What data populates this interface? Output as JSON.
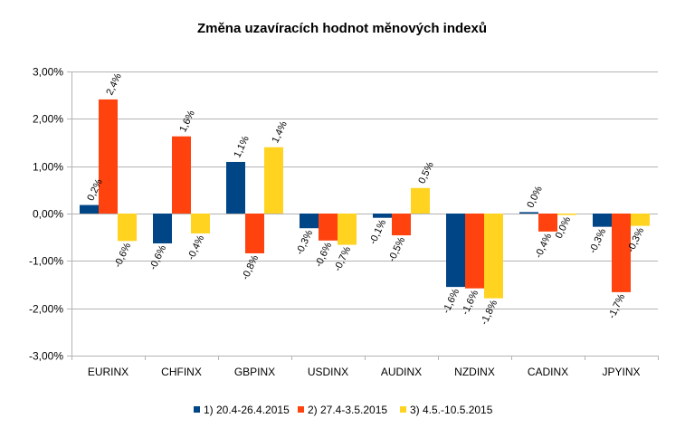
{
  "chart_data": {
    "type": "bar",
    "title": "Změna uzavíracích hodnot měnových indexů",
    "xlabel": "",
    "ylabel": "",
    "ylim": [
      -0.03,
      0.03
    ],
    "yticks": [
      {
        "value": 0.03,
        "label": "3,00%"
      },
      {
        "value": 0.02,
        "label": "2,00%"
      },
      {
        "value": 0.01,
        "label": "1,00%"
      },
      {
        "value": 0.0,
        "label": "0,00%"
      },
      {
        "value": -0.01,
        "label": "-1,00%"
      },
      {
        "value": -0.02,
        "label": "-2,00%"
      },
      {
        "value": -0.03,
        "label": "-3,00%"
      }
    ],
    "grid": true,
    "legend_position": "bottom",
    "categories": [
      "EURINX",
      "CHFINX",
      "GBPINX",
      "USDINX",
      "AUDINX",
      "NZDINX",
      "CADINX",
      "JPYINX"
    ],
    "series": [
      {
        "name": "1) 20.4-26.4.2015",
        "color": "#004586",
        "values": [
          0.0018,
          -0.0063,
          0.0109,
          -0.0031,
          -0.0009,
          -0.0155,
          0.0003,
          -0.0028
        ],
        "labels": [
          "0,2%",
          "-0,6%",
          "1,1%",
          "-0,3%",
          "-0,1%",
          "-1,6%",
          "0,0%",
          "-0,3%"
        ]
      },
      {
        "name": "2) 27.4-3.5.2015",
        "color": "#ff420e",
        "values": [
          0.0241,
          0.0163,
          -0.0084,
          -0.0057,
          -0.0046,
          -0.0158,
          -0.0038,
          -0.0166
        ],
        "labels": [
          "2,4%",
          "1,6%",
          "-0,8%",
          "-0,6%",
          "-0,5%",
          "-1,6%",
          "-0,4%",
          "-1,7%"
        ]
      },
      {
        "name": "3) 4.5.-10.5.2015",
        "color": "#ffd320",
        "values": [
          -0.0058,
          -0.0042,
          0.014,
          -0.0066,
          0.0054,
          -0.0179,
          -0.0003,
          -0.0026
        ],
        "labels": [
          "-0,6%",
          "-0,4%",
          "1,4%",
          "-0,7%",
          "0,5%",
          "-1,8%",
          "0,0%",
          "-0,3%"
        ]
      }
    ]
  }
}
